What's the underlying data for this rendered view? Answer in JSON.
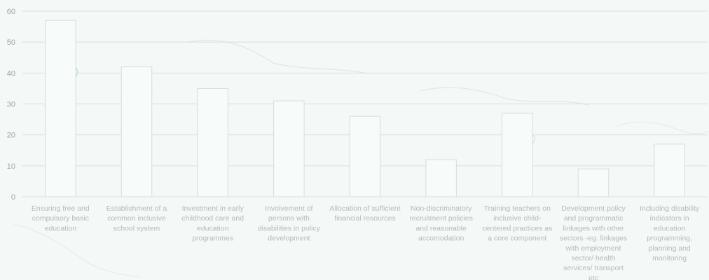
{
  "chart_data": {
    "type": "bar",
    "title": "",
    "xlabel": "",
    "ylabel": "",
    "ylim": [
      0,
      60
    ],
    "yticks": [
      0,
      10,
      20,
      30,
      40,
      50,
      60
    ],
    "grid": true,
    "categories": [
      [
        "Ensuring free and",
        "compulsory basic",
        "education"
      ],
      [
        "Establishment of a",
        "common inclusive",
        "school system"
      ],
      [
        "Investment in early",
        "childhood care and",
        "education",
        "programmes"
      ],
      [
        "Involvement of",
        "persons with",
        "disabilities in policy",
        "development"
      ],
      [
        "Allocation of sufficient",
        "financial resources"
      ],
      [
        "Non-discriminatory",
        "recruitment policies",
        "and reasonable",
        "accomodation"
      ],
      [
        "Training teachers on",
        "inclusive child-",
        "centered practices as",
        "a core component"
      ],
      [
        "Development policy",
        "and programmatic",
        "linkages with other",
        "sectors -eg. linkages",
        "with employment",
        "sector/ health",
        "services/ transport",
        "etc"
      ],
      [
        "Including disability",
        "indicators in",
        "education",
        "programming,",
        "planning and",
        "monitoring"
      ]
    ],
    "values": [
      57,
      42,
      35,
      31,
      26,
      12,
      27,
      9,
      17
    ],
    "colors": {
      "background": "#f4f8f6",
      "bar_fill": "#f7fbf9",
      "bar_stroke": "#d2e0da",
      "grid": "#d8e0dd",
      "map_line": "#9fcbc2"
    }
  }
}
